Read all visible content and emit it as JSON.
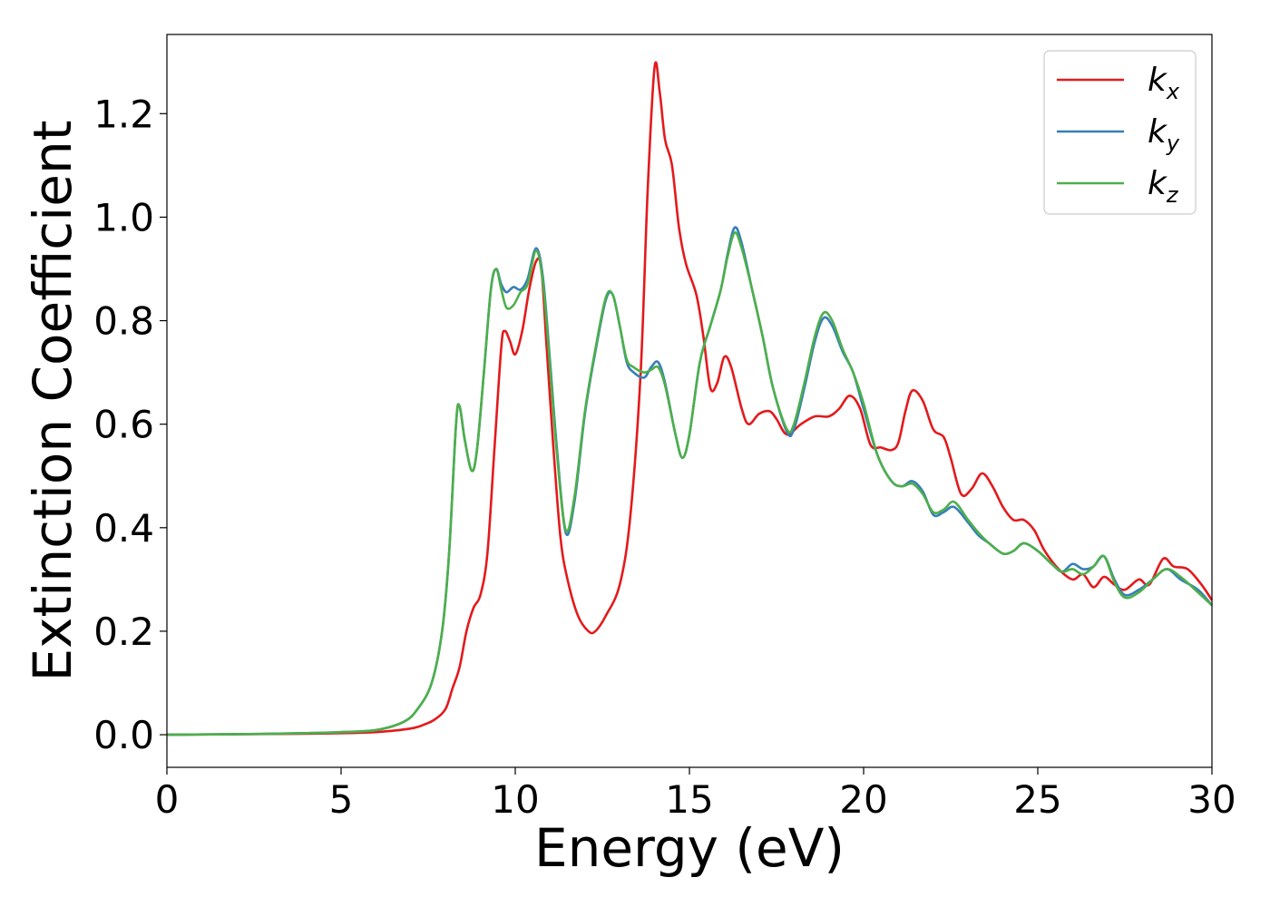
{
  "chart_data": {
    "type": "line",
    "xlabel": "Energy (eV)",
    "ylabel": "Extinction Coefficient",
    "xlim": [
      0,
      30
    ],
    "ylim": [
      -0.063,
      1.353
    ],
    "xticks": [
      0,
      5,
      10,
      15,
      20,
      25,
      30
    ],
    "xtick_labels": [
      "0",
      "5",
      "10",
      "15",
      "20",
      "25",
      "30"
    ],
    "yticks": [
      0.0,
      0.2,
      0.4,
      0.6,
      0.8,
      1.0,
      1.2
    ],
    "ytick_labels": [
      "0.0",
      "0.2",
      "0.4",
      "0.6",
      "0.8",
      "1.0",
      "1.2"
    ],
    "grid": false,
    "legend_position": "top-right",
    "series": [
      {
        "name": "k_x",
        "label_main": "k",
        "label_sub": "x",
        "color": "#e31a1c",
        "points": [
          [
            0,
            0.0
          ],
          [
            2,
            0.001
          ],
          [
            4,
            0.002
          ],
          [
            5,
            0.003
          ],
          [
            6,
            0.005
          ],
          [
            7,
            0.012
          ],
          [
            7.4,
            0.02
          ],
          [
            7.7,
            0.03
          ],
          [
            8.0,
            0.05
          ],
          [
            8.2,
            0.09
          ],
          [
            8.4,
            0.13
          ],
          [
            8.6,
            0.2
          ],
          [
            8.8,
            0.245
          ],
          [
            9.0,
            0.27
          ],
          [
            9.2,
            0.35
          ],
          [
            9.4,
            0.55
          ],
          [
            9.6,
            0.75
          ],
          [
            9.7,
            0.78
          ],
          [
            9.85,
            0.76
          ],
          [
            10.0,
            0.735
          ],
          [
            10.2,
            0.78
          ],
          [
            10.4,
            0.86
          ],
          [
            10.6,
            0.915
          ],
          [
            10.75,
            0.9
          ],
          [
            10.9,
            0.75
          ],
          [
            11.1,
            0.55
          ],
          [
            11.3,
            0.38
          ],
          [
            11.5,
            0.3
          ],
          [
            11.8,
            0.23
          ],
          [
            12.1,
            0.2
          ],
          [
            12.3,
            0.2
          ],
          [
            12.6,
            0.23
          ],
          [
            13.0,
            0.29
          ],
          [
            13.3,
            0.42
          ],
          [
            13.6,
            0.7
          ],
          [
            13.8,
            1.05
          ],
          [
            14.0,
            1.29
          ],
          [
            14.15,
            1.24
          ],
          [
            14.3,
            1.15
          ],
          [
            14.5,
            1.1
          ],
          [
            14.7,
            0.98
          ],
          [
            14.9,
            0.91
          ],
          [
            15.2,
            0.85
          ],
          [
            15.4,
            0.77
          ],
          [
            15.6,
            0.67
          ],
          [
            15.8,
            0.68
          ],
          [
            16.0,
            0.73
          ],
          [
            16.2,
            0.71
          ],
          [
            16.5,
            0.63
          ],
          [
            16.7,
            0.6
          ],
          [
            17.0,
            0.62
          ],
          [
            17.3,
            0.625
          ],
          [
            17.5,
            0.61
          ],
          [
            17.8,
            0.58
          ],
          [
            18.2,
            0.6
          ],
          [
            18.6,
            0.615
          ],
          [
            19.0,
            0.615
          ],
          [
            19.3,
            0.63
          ],
          [
            19.6,
            0.655
          ],
          [
            19.9,
            0.63
          ],
          [
            20.2,
            0.56
          ],
          [
            20.5,
            0.555
          ],
          [
            20.8,
            0.55
          ],
          [
            21.0,
            0.565
          ],
          [
            21.2,
            0.625
          ],
          [
            21.4,
            0.665
          ],
          [
            21.7,
            0.645
          ],
          [
            22.0,
            0.59
          ],
          [
            22.3,
            0.575
          ],
          [
            22.5,
            0.535
          ],
          [
            22.8,
            0.465
          ],
          [
            23.1,
            0.475
          ],
          [
            23.4,
            0.505
          ],
          [
            23.7,
            0.48
          ],
          [
            24.0,
            0.44
          ],
          [
            24.3,
            0.415
          ],
          [
            24.6,
            0.415
          ],
          [
            24.9,
            0.395
          ],
          [
            25.2,
            0.355
          ],
          [
            25.6,
            0.32
          ],
          [
            26.0,
            0.3
          ],
          [
            26.3,
            0.31
          ],
          [
            26.6,
            0.285
          ],
          [
            26.9,
            0.305
          ],
          [
            27.2,
            0.29
          ],
          [
            27.5,
            0.28
          ],
          [
            27.9,
            0.3
          ],
          [
            28.2,
            0.29
          ],
          [
            28.6,
            0.34
          ],
          [
            28.9,
            0.325
          ],
          [
            29.3,
            0.32
          ],
          [
            29.7,
            0.29
          ],
          [
            30,
            0.26
          ]
        ]
      },
      {
        "name": "k_y",
        "label_main": "k",
        "label_sub": "y",
        "color": "#377eb8",
        "points": [
          [
            0,
            0.0
          ],
          [
            2,
            0.001
          ],
          [
            4,
            0.003
          ],
          [
            5,
            0.005
          ],
          [
            6,
            0.009
          ],
          [
            6.8,
            0.025
          ],
          [
            7.2,
            0.05
          ],
          [
            7.6,
            0.1
          ],
          [
            7.9,
            0.2
          ],
          [
            8.1,
            0.35
          ],
          [
            8.3,
            0.6
          ],
          [
            8.4,
            0.635
          ],
          [
            8.55,
            0.57
          ],
          [
            8.75,
            0.51
          ],
          [
            8.9,
            0.55
          ],
          [
            9.1,
            0.7
          ],
          [
            9.3,
            0.86
          ],
          [
            9.45,
            0.9
          ],
          [
            9.6,
            0.87
          ],
          [
            9.75,
            0.855
          ],
          [
            9.95,
            0.865
          ],
          [
            10.15,
            0.86
          ],
          [
            10.35,
            0.88
          ],
          [
            10.6,
            0.94
          ],
          [
            10.8,
            0.88
          ],
          [
            11.0,
            0.72
          ],
          [
            11.2,
            0.55
          ],
          [
            11.45,
            0.39
          ],
          [
            11.7,
            0.45
          ],
          [
            12.0,
            0.62
          ],
          [
            12.3,
            0.74
          ],
          [
            12.6,
            0.84
          ],
          [
            12.8,
            0.85
          ],
          [
            13.0,
            0.79
          ],
          [
            13.2,
            0.72
          ],
          [
            13.4,
            0.7
          ],
          [
            13.7,
            0.69
          ],
          [
            13.9,
            0.71
          ],
          [
            14.1,
            0.72
          ],
          [
            14.3,
            0.68
          ],
          [
            14.6,
            0.58
          ],
          [
            14.8,
            0.535
          ],
          [
            15.0,
            0.58
          ],
          [
            15.3,
            0.72
          ],
          [
            15.6,
            0.79
          ],
          [
            15.9,
            0.86
          ],
          [
            16.1,
            0.93
          ],
          [
            16.3,
            0.98
          ],
          [
            16.5,
            0.95
          ],
          [
            16.8,
            0.86
          ],
          [
            17.1,
            0.77
          ],
          [
            17.4,
            0.67
          ],
          [
            17.8,
            0.585
          ],
          [
            18.0,
            0.59
          ],
          [
            18.3,
            0.67
          ],
          [
            18.6,
            0.76
          ],
          [
            18.85,
            0.805
          ],
          [
            19.1,
            0.79
          ],
          [
            19.4,
            0.74
          ],
          [
            19.7,
            0.7
          ],
          [
            20.0,
            0.63
          ],
          [
            20.4,
            0.54
          ],
          [
            20.8,
            0.49
          ],
          [
            21.1,
            0.48
          ],
          [
            21.4,
            0.49
          ],
          [
            21.7,
            0.47
          ],
          [
            22.0,
            0.425
          ],
          [
            22.3,
            0.43
          ],
          [
            22.6,
            0.44
          ],
          [
            23.0,
            0.41
          ],
          [
            23.3,
            0.385
          ],
          [
            23.6,
            0.37
          ],
          [
            24.0,
            0.35
          ],
          [
            24.3,
            0.355
          ],
          [
            24.6,
            0.37
          ],
          [
            25.0,
            0.355
          ],
          [
            25.4,
            0.33
          ],
          [
            25.7,
            0.315
          ],
          [
            26.0,
            0.33
          ],
          [
            26.3,
            0.32
          ],
          [
            26.6,
            0.325
          ],
          [
            26.9,
            0.345
          ],
          [
            27.2,
            0.3
          ],
          [
            27.5,
            0.27
          ],
          [
            27.9,
            0.28
          ],
          [
            28.3,
            0.3
          ],
          [
            28.7,
            0.32
          ],
          [
            29.1,
            0.3
          ],
          [
            29.6,
            0.28
          ],
          [
            30,
            0.25
          ]
        ]
      },
      {
        "name": "k_z",
        "label_main": "k",
        "label_sub": "z",
        "color": "#4daf4a",
        "points": [
          [
            0,
            0.0
          ],
          [
            2,
            0.001
          ],
          [
            4,
            0.003
          ],
          [
            5,
            0.005
          ],
          [
            6,
            0.009
          ],
          [
            6.8,
            0.025
          ],
          [
            7.2,
            0.05
          ],
          [
            7.6,
            0.1
          ],
          [
            7.9,
            0.2
          ],
          [
            8.1,
            0.35
          ],
          [
            8.3,
            0.6
          ],
          [
            8.4,
            0.635
          ],
          [
            8.55,
            0.57
          ],
          [
            8.75,
            0.51
          ],
          [
            8.9,
            0.55
          ],
          [
            9.1,
            0.7
          ],
          [
            9.3,
            0.86
          ],
          [
            9.45,
            0.9
          ],
          [
            9.6,
            0.86
          ],
          [
            9.75,
            0.825
          ],
          [
            9.95,
            0.83
          ],
          [
            10.15,
            0.855
          ],
          [
            10.35,
            0.87
          ],
          [
            10.6,
            0.935
          ],
          [
            10.8,
            0.87
          ],
          [
            11.0,
            0.71
          ],
          [
            11.2,
            0.54
          ],
          [
            11.45,
            0.395
          ],
          [
            11.7,
            0.46
          ],
          [
            12.0,
            0.625
          ],
          [
            12.3,
            0.745
          ],
          [
            12.6,
            0.845
          ],
          [
            12.8,
            0.85
          ],
          [
            13.0,
            0.79
          ],
          [
            13.2,
            0.725
          ],
          [
            13.4,
            0.71
          ],
          [
            13.7,
            0.7
          ],
          [
            13.9,
            0.705
          ],
          [
            14.1,
            0.71
          ],
          [
            14.3,
            0.675
          ],
          [
            14.6,
            0.58
          ],
          [
            14.8,
            0.535
          ],
          [
            15.0,
            0.58
          ],
          [
            15.3,
            0.72
          ],
          [
            15.6,
            0.79
          ],
          [
            15.9,
            0.86
          ],
          [
            16.1,
            0.925
          ],
          [
            16.3,
            0.97
          ],
          [
            16.5,
            0.94
          ],
          [
            16.8,
            0.86
          ],
          [
            17.1,
            0.77
          ],
          [
            17.4,
            0.67
          ],
          [
            17.8,
            0.59
          ],
          [
            18.0,
            0.6
          ],
          [
            18.3,
            0.68
          ],
          [
            18.6,
            0.77
          ],
          [
            18.85,
            0.815
          ],
          [
            19.1,
            0.8
          ],
          [
            19.4,
            0.745
          ],
          [
            19.7,
            0.7
          ],
          [
            20.0,
            0.64
          ],
          [
            20.4,
            0.54
          ],
          [
            20.8,
            0.49
          ],
          [
            21.1,
            0.48
          ],
          [
            21.4,
            0.485
          ],
          [
            21.7,
            0.465
          ],
          [
            22.0,
            0.43
          ],
          [
            22.3,
            0.435
          ],
          [
            22.6,
            0.45
          ],
          [
            23.0,
            0.415
          ],
          [
            23.3,
            0.39
          ],
          [
            23.6,
            0.37
          ],
          [
            24.0,
            0.35
          ],
          [
            24.3,
            0.355
          ],
          [
            24.6,
            0.37
          ],
          [
            25.0,
            0.355
          ],
          [
            25.4,
            0.33
          ],
          [
            25.7,
            0.315
          ],
          [
            26.0,
            0.32
          ],
          [
            26.3,
            0.31
          ],
          [
            26.6,
            0.325
          ],
          [
            26.9,
            0.345
          ],
          [
            27.2,
            0.295
          ],
          [
            27.5,
            0.265
          ],
          [
            27.9,
            0.275
          ],
          [
            28.3,
            0.3
          ],
          [
            28.7,
            0.32
          ],
          [
            29.1,
            0.305
          ],
          [
            29.6,
            0.275
          ],
          [
            30,
            0.25
          ]
        ]
      }
    ]
  }
}
